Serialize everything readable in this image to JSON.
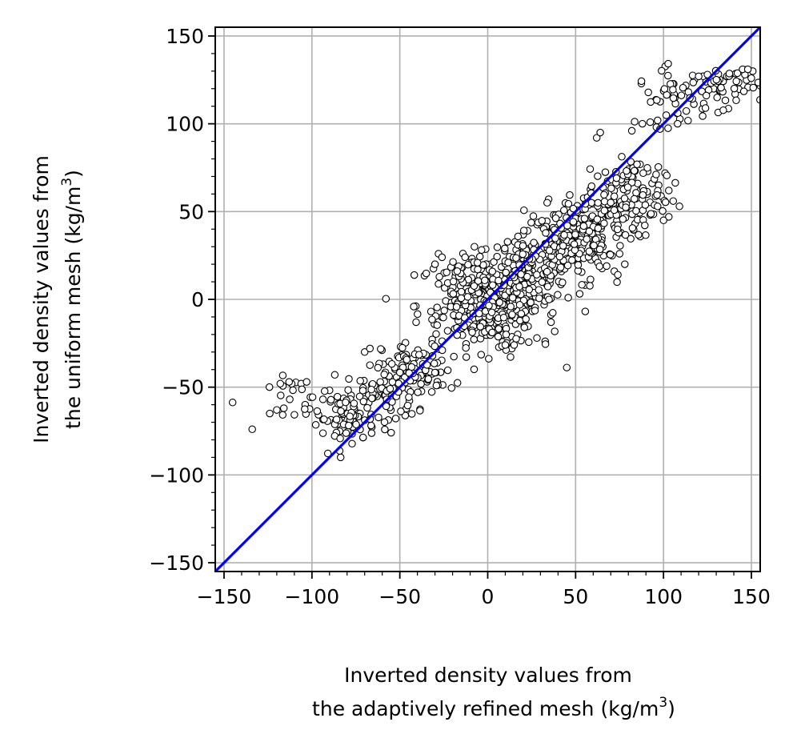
{
  "chart_data": {
    "type": "scatter",
    "xlabel_line1": "Inverted density values from",
    "xlabel_line2": "the adaptively refined mesh (kg/m",
    "xlabel_sup": "3",
    "xlabel_close": ")",
    "ylabel_line1": "Inverted density values from",
    "ylabel_line2": "the uniform mesh (kg/m",
    "ylabel_sup": "3",
    "ylabel_close": ")",
    "xlim": [
      -155,
      155
    ],
    "ylim": [
      -155,
      155
    ],
    "xticks": [
      -150,
      -100,
      -50,
      0,
      50,
      100,
      150
    ],
    "yticks": [
      -150,
      -100,
      -50,
      0,
      50,
      100,
      150
    ],
    "xtick_labels": [
      "−150",
      "−100",
      "−50",
      "0",
      "50",
      "100",
      "150"
    ],
    "ytick_labels": [
      "−150",
      "−100",
      "−50",
      "0",
      "50",
      "100",
      "150"
    ],
    "grid": true,
    "reference_line": {
      "name": "1:1 line",
      "color": "#0000ff",
      "x": [
        -155,
        155
      ],
      "y": [
        -155,
        155
      ]
    },
    "marker": {
      "fill": "#ffffff",
      "edge": "#000000"
    },
    "clusters": [
      {
        "cx": 0,
        "cy": 0,
        "sx": 12,
        "sy": 12,
        "n": 200
      },
      {
        "cx": 0,
        "cy": -3,
        "sx": 20,
        "sy": 14,
        "n": 160
      },
      {
        "cx": 25,
        "cy": 18,
        "sx": 10,
        "sy": 10,
        "n": 140
      },
      {
        "cx": 45,
        "cy": 30,
        "sx": 12,
        "sy": 12,
        "n": 130
      },
      {
        "cx": 60,
        "cy": 42,
        "sx": 10,
        "sy": 12,
        "n": 110
      },
      {
        "cx": 75,
        "cy": 55,
        "sx": 10,
        "sy": 10,
        "n": 80
      },
      {
        "cx": -40,
        "cy": -40,
        "sx": 10,
        "sy": 8,
        "n": 90
      },
      {
        "cx": -60,
        "cy": -55,
        "sx": 10,
        "sy": 8,
        "n": 80
      },
      {
        "cx": -80,
        "cy": -68,
        "sx": 8,
        "sy": 7,
        "n": 70
      },
      {
        "cx": -100,
        "cy": -60,
        "sx": 12,
        "sy": 8,
        "n": 25
      },
      {
        "cx": 105,
        "cy": 115,
        "sx": 10,
        "sy": 8,
        "n": 45
      },
      {
        "cx": 135,
        "cy": 122,
        "sx": 10,
        "sy": 6,
        "n": 55
      },
      {
        "cx": 85,
        "cy": 70,
        "sx": 8,
        "sy": 5,
        "n": 25
      },
      {
        "cx": 95,
        "cy": 55,
        "sx": 6,
        "sy": 6,
        "n": 15
      },
      {
        "cx": -15,
        "cy": 15,
        "sx": 8,
        "sy": 6,
        "n": 20
      },
      {
        "cx": 10,
        "cy": -18,
        "sx": 8,
        "sy": 6,
        "n": 20
      }
    ],
    "extra_points": [
      [
        -124,
        -65
      ],
      [
        -120,
        -63
      ],
      [
        -116,
        -62
      ],
      [
        -118,
        -48
      ],
      [
        -113,
        -47
      ],
      [
        -103,
        -47
      ],
      [
        -70,
        -30
      ],
      [
        -67,
        -28
      ],
      [
        -87,
        -43
      ],
      [
        62,
        92
      ],
      [
        64,
        95
      ],
      [
        82,
        96
      ],
      [
        103,
        47
      ],
      [
        100,
        45
      ],
      [
        103,
        62
      ],
      [
        75,
        26
      ],
      [
        72,
        16
      ],
      [
        74,
        14
      ],
      [
        78,
        20
      ],
      [
        -28,
        26
      ],
      [
        -26,
        24
      ],
      [
        -30,
        20
      ],
      [
        10,
        -26
      ],
      [
        15,
        -26
      ],
      [
        28,
        -22
      ],
      [
        36,
        -13
      ],
      [
        108,
        100
      ],
      [
        98,
        97
      ],
      [
        88,
        100
      ],
      [
        145,
        131
      ],
      [
        148,
        131
      ],
      [
        125,
        128
      ],
      [
        120,
        127
      ]
    ]
  }
}
